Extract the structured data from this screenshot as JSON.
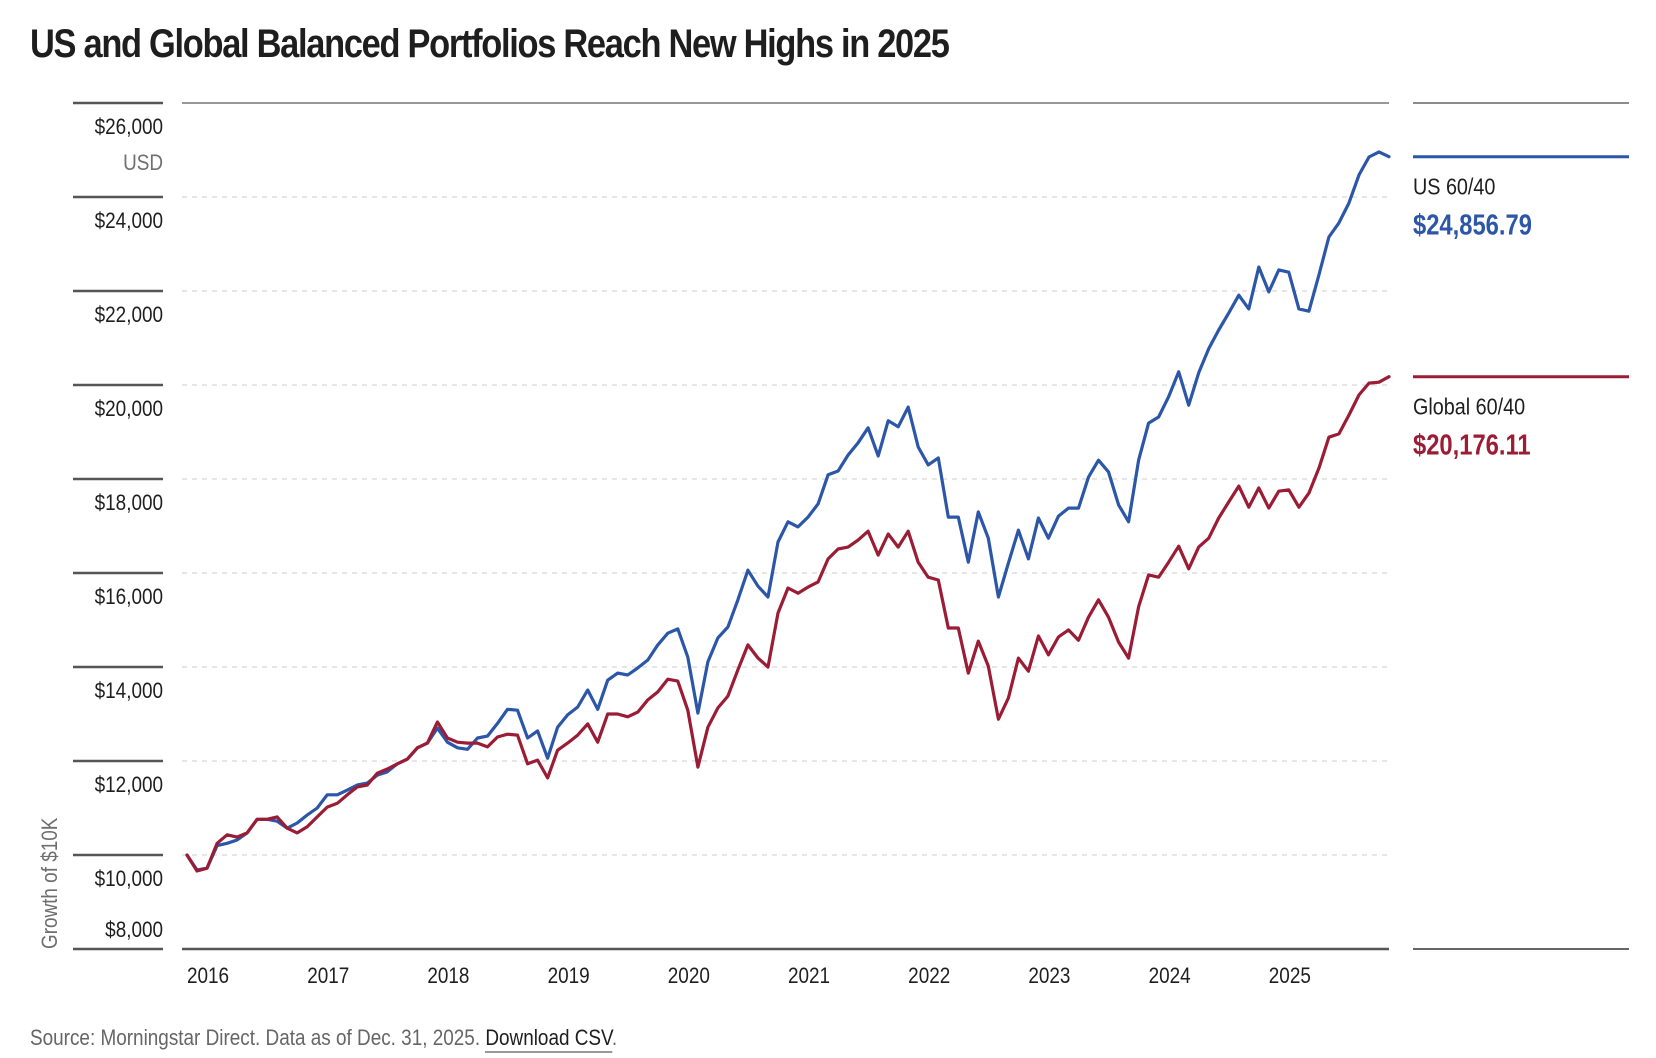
{
  "title": "US and Global Balanced Portfolios Reach New Highs in 2025",
  "source": {
    "text": "Source: Morningstar Direct. Data as of Dec. 31, 2025. ",
    "link_label": "Download CSV",
    "trailing": "."
  },
  "chart_data": {
    "type": "line",
    "title": "US and Global Balanced Portfolios Reach New Highs in 2025",
    "ylabel": "Growth of $10K",
    "y_unit": "USD",
    "xlabel": "",
    "ylim": [
      8000,
      26000
    ],
    "y_ticks": [
      8000,
      10000,
      12000,
      14000,
      16000,
      18000,
      20000,
      22000,
      24000,
      26000
    ],
    "y_tick_labels": [
      "$8,000",
      "$10,000",
      "$12,000",
      "$14,000",
      "$16,000",
      "$18,000",
      "$20,000",
      "$22,000",
      "$24,000",
      "$26,000"
    ],
    "x_tick_labels": [
      "2016",
      "2017",
      "2018",
      "2019",
      "2020",
      "2021",
      "2022",
      "2023",
      "2024",
      "2025"
    ],
    "x_range": [
      "2016-01",
      "2025-12"
    ],
    "frequency": "monthly",
    "grid": true,
    "legend_position": "right",
    "series": [
      {
        "name": "US 60/40",
        "color": "#2c56a8",
        "end_label": "$24,856.79",
        "values": [
          10000,
          9680,
          9720,
          10200,
          10250,
          10320,
          10470,
          10760,
          10760,
          10720,
          10570,
          10680,
          10850,
          11000,
          11280,
          11280,
          11380,
          11490,
          11530,
          11700,
          11770,
          11940,
          12040,
          12280,
          12380,
          12700,
          12400,
          12280,
          12250,
          12490,
          12530,
          12800,
          13100,
          13080,
          12490,
          12640,
          12060,
          12720,
          12980,
          13150,
          13510,
          13100,
          13720,
          13870,
          13830,
          13980,
          14150,
          14470,
          14720,
          14810,
          14210,
          13020,
          14110,
          14620,
          14850,
          15430,
          16060,
          15720,
          15490,
          16660,
          17090,
          16980,
          17190,
          17470,
          18090,
          18170,
          18510,
          18770,
          19090,
          18490,
          19240,
          19110,
          19530,
          18680,
          18300,
          18450,
          17190,
          17190,
          16230,
          17300,
          16740,
          15490,
          16210,
          16910,
          16300,
          17170,
          16740,
          17210,
          17380,
          17380,
          18040,
          18400,
          18150,
          17450,
          17090,
          18400,
          19190,
          19320,
          19750,
          20280,
          19570,
          20260,
          20770,
          21170,
          21530,
          21910,
          21620,
          22510,
          21980,
          22450,
          22400,
          21620,
          21570,
          22340,
          23150,
          23450,
          23870,
          24470,
          24850,
          24960,
          24857
        ]
      },
      {
        "name": "Global 60/40",
        "color": "#9b1c35",
        "end_label": "$20,176.11",
        "values": [
          10000,
          9660,
          9720,
          10250,
          10430,
          10380,
          10470,
          10760,
          10760,
          10810,
          10570,
          10470,
          10600,
          10810,
          11020,
          11100,
          11280,
          11450,
          11490,
          11740,
          11830,
          11940,
          12040,
          12280,
          12380,
          12830,
          12490,
          12400,
          12380,
          12380,
          12300,
          12510,
          12570,
          12550,
          11940,
          12020,
          11640,
          12230,
          12380,
          12550,
          12790,
          12400,
          13000,
          13000,
          12940,
          13040,
          13300,
          13470,
          13740,
          13700,
          13080,
          11870,
          12720,
          13130,
          13380,
          13940,
          14470,
          14190,
          14000,
          15150,
          15680,
          15570,
          15700,
          15810,
          16300,
          16510,
          16550,
          16700,
          16890,
          16380,
          16830,
          16550,
          16890,
          16230,
          15910,
          15850,
          14830,
          14830,
          13870,
          14550,
          14020,
          12890,
          13340,
          14190,
          13910,
          14660,
          14260,
          14640,
          14790,
          14570,
          15060,
          15430,
          15060,
          14530,
          14190,
          15280,
          15960,
          15910,
          16230,
          16570,
          16090,
          16550,
          16740,
          17170,
          17510,
          17850,
          17400,
          17810,
          17380,
          17740,
          17770,
          17400,
          17700,
          18230,
          18890,
          18960,
          19360,
          19790,
          20040,
          20060,
          20176
        ]
      }
    ]
  }
}
